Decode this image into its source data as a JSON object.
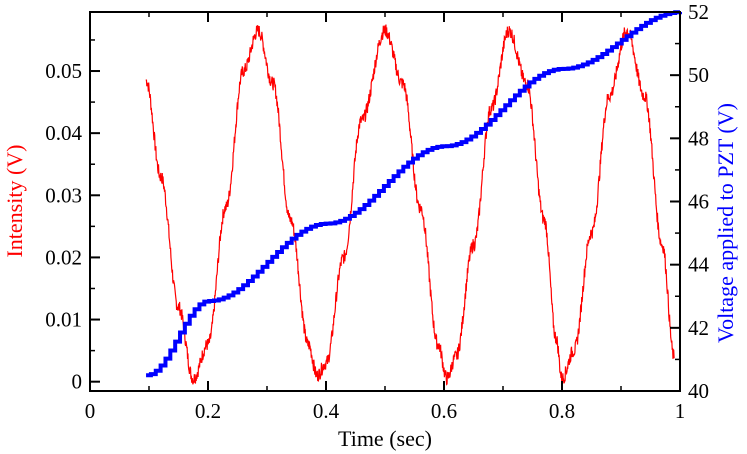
{
  "chart_data": {
    "type": "line",
    "xlabel": "Time (sec)",
    "ylabel_left": "Intensity (V)",
    "ylabel_right": "Voltage applied to PZT (V)",
    "xlim": [
      0,
      1
    ],
    "ylim_left": [
      -0.0015,
      0.0595
    ],
    "ylim_right": [
      40,
      52
    ],
    "x_ticks": [
      "0",
      "0.2",
      "0.4",
      "0.6",
      "0.8",
      "1"
    ],
    "x_tick_values": [
      0,
      0.2,
      0.4,
      0.6,
      0.8,
      1
    ],
    "y_ticks_left": [
      "0",
      "0.01",
      "0.02",
      "0.03",
      "0.04",
      "0.05"
    ],
    "y_tick_values_left": [
      0,
      0.01,
      0.02,
      0.03,
      0.04,
      0.05
    ],
    "y_ticks_right": [
      "40",
      "42",
      "44",
      "46",
      "48",
      "50",
      "52"
    ],
    "y_tick_values_right": [
      40,
      42,
      44,
      46,
      48,
      50,
      52
    ],
    "colors": {
      "intensity": "#ff0000",
      "voltage": "#0000ff",
      "axes": "#000000"
    },
    "series": [
      {
        "axis": "left",
        "color": "#ff0000",
        "noisy": true,
        "x": [
          0.095,
          0.12,
          0.15,
          0.175,
          0.2,
          0.23,
          0.26,
          0.285,
          0.31,
          0.34,
          0.37,
          0.385,
          0.4,
          0.43,
          0.46,
          0.5,
          0.53,
          0.56,
          0.59,
          0.605,
          0.62,
          0.65,
          0.68,
          0.71,
          0.74,
          0.77,
          0.79,
          0.8,
          0.82,
          0.85,
          0.88,
          0.91,
          0.94,
          0.97,
          0.99
        ],
        "y": [
          0.0485,
          0.033,
          0.012,
          0.0005,
          0.006,
          0.028,
          0.05,
          0.0565,
          0.048,
          0.026,
          0.006,
          0.001,
          0.003,
          0.02,
          0.042,
          0.0565,
          0.048,
          0.028,
          0.006,
          0.0005,
          0.004,
          0.022,
          0.044,
          0.0565,
          0.048,
          0.026,
          0.007,
          0.0005,
          0.005,
          0.024,
          0.046,
          0.0565,
          0.046,
          0.022,
          0.004
        ]
      },
      {
        "axis": "right",
        "color": "#0000ff",
        "step": true,
        "x": [
          0.095,
          0.2,
          0.4,
          0.6,
          0.8,
          1.0
        ],
        "y": [
          40.5,
          42.85,
          45.3,
          47.75,
          50.2,
          52.0
        ]
      }
    ]
  }
}
